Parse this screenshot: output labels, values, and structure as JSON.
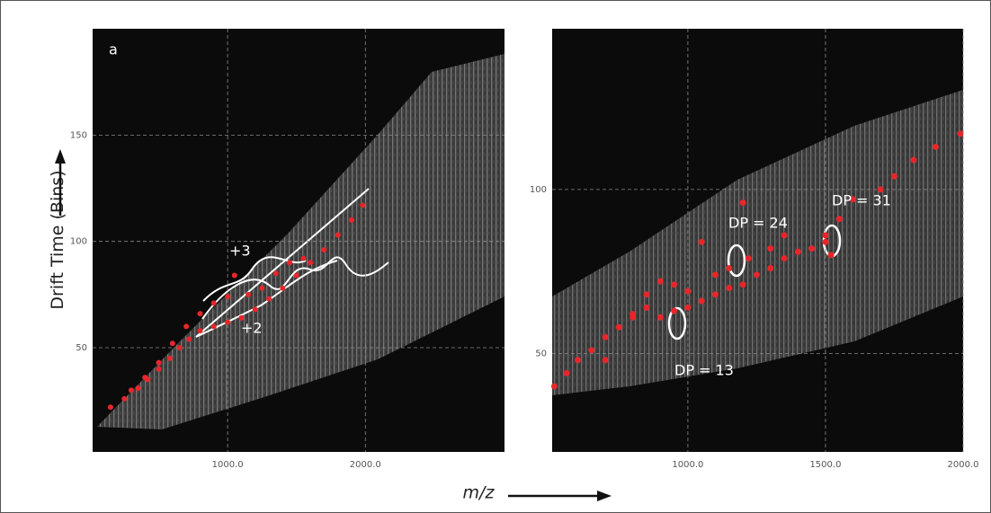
{
  "figure": {
    "y_label": "Drift Time (Bins)",
    "x_label": "m/z"
  },
  "chart_data": [
    {
      "type": "scatter",
      "panel_label": "a",
      "color": "#e8262a",
      "grid": true,
      "xlim": [
        20,
        3010
      ],
      "ylim": [
        1,
        200
      ],
      "xticks": [
        {
          "value": 1000,
          "label": "1000.0"
        },
        {
          "value": 2000,
          "label": "2000.0"
        }
      ],
      "yticks": [
        50,
        100,
        150
      ],
      "annotations": [
        "+3",
        "+2"
      ],
      "x": [
        150,
        250,
        350,
        420,
        500,
        580,
        650,
        720,
        800,
        900,
        1000,
        1100,
        1200,
        1300,
        1400,
        1500,
        1600,
        1700,
        1800,
        1900,
        1980,
        300,
        400,
        500,
        600,
        700,
        800,
        900,
        1000,
        1050,
        1150,
        1250,
        1350,
        1450,
        1550
      ],
      "values": [
        22,
        26,
        31,
        35,
        40,
        45,
        50,
        54,
        58,
        60,
        62,
        64,
        68,
        73,
        78,
        84,
        90,
        96,
        103,
        110,
        117,
        30,
        36,
        43,
        52,
        60,
        66,
        71,
        74,
        84,
        75,
        78,
        85,
        90,
        92
      ]
    },
    {
      "type": "scatter",
      "color": "#e8262a",
      "grid": true,
      "xlim": [
        507,
        2000
      ],
      "ylim": [
        20,
        149
      ],
      "xticks": [
        {
          "value": 1000,
          "label": "1000.0"
        },
        {
          "value": 1500,
          "label": "1500.0"
        },
        {
          "value": 2000,
          "label": "2000.0"
        }
      ],
      "yticks": [
        50,
        100
      ],
      "annotations": [
        "DP = 24",
        "DP = 31",
        "DP = 13"
      ],
      "x": [
        515,
        560,
        600,
        650,
        700,
        750,
        800,
        850,
        900,
        950,
        1000,
        1050,
        1100,
        1150,
        1200,
        1250,
        1300,
        1350,
        1400,
        1450,
        1500,
        1550,
        1600,
        1700,
        1750,
        1820,
        1900,
        1990,
        700,
        800,
        850,
        900,
        950,
        1000,
        1050,
        1100,
        1150,
        1200,
        1220,
        1300,
        1350,
        1500,
        1520
      ],
      "values": [
        40,
        44,
        48,
        51,
        55,
        58,
        61,
        64,
        61,
        63,
        64,
        66,
        68,
        70,
        71,
        74,
        76,
        79,
        81,
        82,
        84,
        91,
        97,
        100,
        104,
        109,
        113,
        117,
        48,
        62,
        68,
        72,
        71,
        69,
        84,
        74,
        76,
        96,
        79,
        82,
        86,
        86,
        80
      ]
    }
  ]
}
